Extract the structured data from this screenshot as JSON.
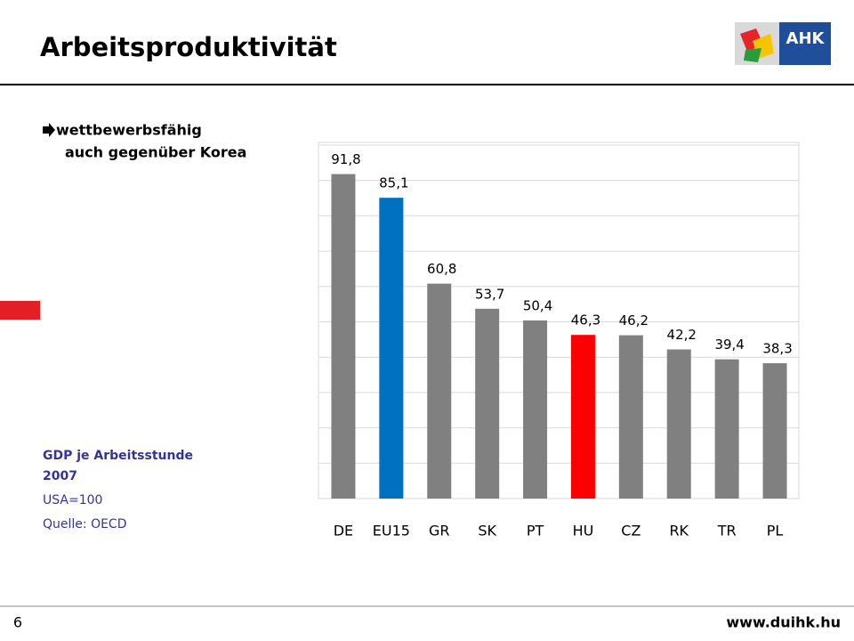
{
  "slide": {
    "title": "Arbeitsproduktivität",
    "logo_text": "AHK",
    "bullet": [
      "wettbewerbsfähig",
      "auch gegenüber Korea"
    ],
    "note_title": [
      "GDP je Arbeitsstunde",
      "2007"
    ],
    "note_lines": [
      "USA=100",
      "Quelle: OECD"
    ],
    "page_number": "6",
    "url": "www.duihk.hu"
  },
  "chart_data": {
    "type": "bar",
    "categories": [
      "DE",
      "EU15",
      "GR",
      "SK",
      "PT",
      "HU",
      "CZ",
      "RK",
      "TR",
      "PL"
    ],
    "values": [
      91.8,
      85.1,
      60.8,
      53.7,
      50.4,
      46.3,
      46.2,
      42.2,
      39.4,
      38.3
    ],
    "value_labels": [
      "91,8",
      "85,1",
      "60,8",
      "53,7",
      "50,4",
      "46,3",
      "46,2",
      "42,2",
      "39,4",
      "38,3"
    ],
    "colors": [
      "#808080",
      "#0070c0",
      "#808080",
      "#808080",
      "#808080",
      "#ff0000",
      "#808080",
      "#808080",
      "#808080",
      "#808080"
    ],
    "ylim": [
      0,
      100
    ],
    "yticks": [
      0,
      10,
      20,
      30,
      40,
      50,
      60,
      70,
      80,
      90,
      100
    ],
    "grid": true
  }
}
